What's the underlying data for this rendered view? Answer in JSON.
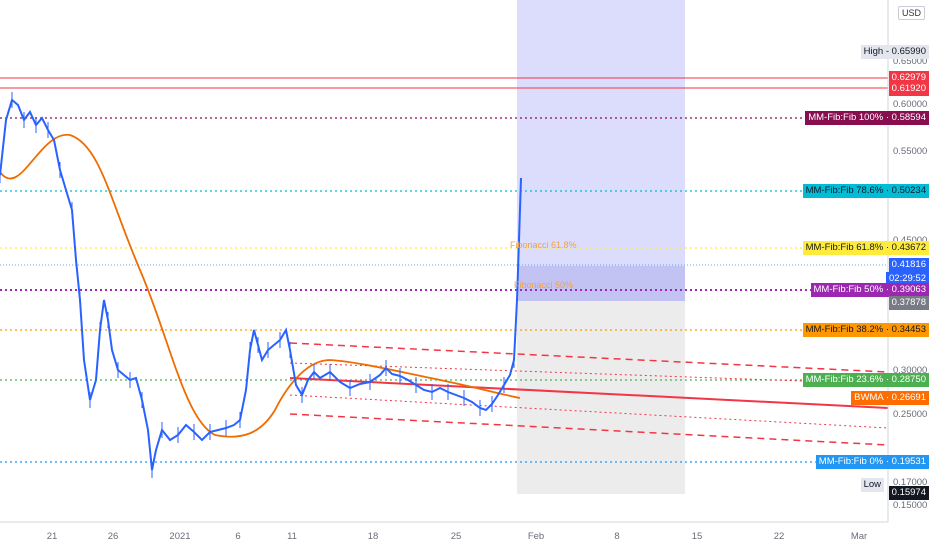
{
  "currency": "USD",
  "y_ticks": [
    "0.65000",
    "0.60000",
    "0.55000",
    "0.45000",
    "0.30000",
    "0.25000",
    "0.17000",
    "0.15000"
  ],
  "x_ticks": [
    "21",
    "26",
    "2021",
    "6",
    "11",
    "18",
    "25",
    "Feb",
    "8",
    "15",
    "22",
    "Mar"
  ],
  "labels": {
    "high": {
      "name": "High",
      "value": "0.65990"
    },
    "low": {
      "name": "Low",
      "value": "0.15974"
    },
    "red_level_1": "0.62979",
    "red_level_2": "0.61920",
    "fib_100": {
      "name": "MM-Fib:Fib 100%",
      "value": "0.58594"
    },
    "fib_786": {
      "name": "MM-Fib:Fib 78.6%",
      "value": "0.50234"
    },
    "fib_618": {
      "name": "MM-Fib:Fib 61.8%",
      "value": "0.43672"
    },
    "price": "0.41816",
    "countdown": "02:29:52",
    "fib_50": {
      "name": "MM-Fib:Fib 50%",
      "value": "0.39063"
    },
    "price_2": "0.37878",
    "fib_382": {
      "name": "MM-Fib:Fib 38.2%",
      "value": "0.34453"
    },
    "fib_236": {
      "name": "MM-Fib:Fib 23.6%",
      "value": "0.28750"
    },
    "bwma": {
      "name": "BWMA",
      "value": "0.26691"
    },
    "fib_0": {
      "name": "MM-Fib:Fib 0%",
      "value": "0.19531"
    }
  },
  "on_chart": {
    "fib_618_text": "Fibonacci 61.8%",
    "fib_50_text": "Fibonacci 50%"
  },
  "colors": {
    "candle": "#2962ff",
    "red_line": "#f23645",
    "fib_100": "#880e4f",
    "fib_786": "#00bcd4",
    "fib_618": "#ffeb3b",
    "fib_50": "#9c27b0",
    "fib_382": "#ff9800",
    "fib_236": "#4caf50",
    "fib_0": "#2196f3",
    "bwma": "#ff6d00",
    "gray_label": "#787b86",
    "price_label": "#2962ff"
  }
}
